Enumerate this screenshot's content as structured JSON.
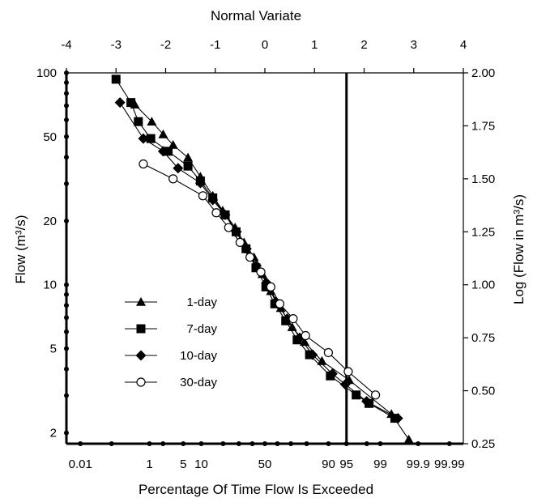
{
  "chart_data": {
    "type": "line",
    "title": "",
    "top_axis": {
      "label": "Normal Variate",
      "ticks": [
        -4,
        -3,
        -2,
        -1,
        0,
        1,
        2,
        3,
        4
      ],
      "tick_labels": [
        "-4",
        "-3",
        "-2",
        "-1",
        "0",
        "1",
        "2",
        "3",
        "4"
      ],
      "range": [
        -4,
        4
      ]
    },
    "bottom_axis": {
      "label": "Percentage Of Time Flow Is Exceeded",
      "scale": "normal-probability",
      "tick_labels": [
        {
          "label": "0.01",
          "z": -3.719
        },
        {
          "label": "1",
          "z": -2.326
        },
        {
          "label": "5",
          "z": -1.645
        },
        {
          "label": "10",
          "z": -1.282
        },
        {
          "label": "50",
          "z": 0
        },
        {
          "label": "90",
          "z": 1.282
        },
        {
          "label": "95",
          "z": 1.645
        },
        {
          "label": "99",
          "z": 2.326
        },
        {
          "label": "99.9",
          "z": 3.09
        },
        {
          "label": "99.99",
          "z": 3.719
        }
      ],
      "dot_ticks_z": [
        -3.719,
        -3.09,
        -2.326,
        -2.054,
        -1.645,
        -1.282,
        -0.842,
        -0.524,
        -0.253,
        0,
        0.253,
        0.524,
        0.842,
        1.282,
        1.645,
        2.054,
        2.326,
        3.09,
        3.719
      ]
    },
    "left_axis": {
      "label": "Flow (m³/s)",
      "scale": "log",
      "range": [
        1.778,
        100
      ],
      "tick_labels": [
        {
          "label": "2",
          "value": 2
        },
        {
          "label": "5",
          "value": 5
        },
        {
          "label": "10",
          "value": 10
        },
        {
          "label": "20",
          "value": 20
        },
        {
          "label": "50",
          "value": 50
        },
        {
          "label": "100",
          "value": 100
        }
      ],
      "dot_ticks": [
        2,
        3,
        4,
        5,
        6,
        7,
        8,
        9,
        10,
        20,
        30,
        40,
        50,
        60,
        70,
        80,
        90,
        100
      ]
    },
    "right_axis": {
      "label": "Log (Flow in m³/s)",
      "range": [
        0.25,
        2.0
      ],
      "ticks": [
        0.25,
        0.5,
        0.75,
        1.0,
        1.25,
        1.5,
        1.75,
        2.0
      ],
      "tick_labels": [
        "0.25",
        "0.50",
        "0.75",
        "1.00",
        "1.25",
        "1.50",
        "1.75",
        "2.00"
      ]
    },
    "vertical_reference_line_z": 1.645,
    "legend_position": "center-left",
    "series": [
      {
        "name": "1-day",
        "marker": "triangle",
        "x": [
          -2.62,
          -2.28,
          -2.05,
          -1.85,
          -1.55,
          -1.3,
          -1.05,
          -0.85,
          -0.6,
          -0.42,
          -0.22,
          -0.05,
          0.12,
          0.32,
          0.55,
          0.8,
          1.15,
          1.7,
          2.55,
          2.9
        ],
        "y": [
          1.85,
          1.77,
          1.71,
          1.66,
          1.6,
          1.51,
          1.42,
          1.35,
          1.27,
          1.2,
          1.13,
          1.05,
          0.97,
          0.89,
          0.8,
          0.73,
          0.64,
          0.55,
          0.39,
          0.27
        ]
      },
      {
        "name": "7-day",
        "marker": "square",
        "x": [
          -3.0,
          -2.7,
          -2.55,
          -2.3,
          -1.95,
          -1.55,
          -1.3,
          -1.05,
          -0.8,
          -0.58,
          -0.38,
          -0.18,
          0.02,
          0.2,
          0.42,
          0.65,
          0.9,
          1.32,
          1.84,
          2.1,
          2.62
        ],
        "y": [
          1.97,
          1.86,
          1.77,
          1.69,
          1.63,
          1.56,
          1.49,
          1.41,
          1.33,
          1.25,
          1.17,
          1.08,
          0.99,
          0.91,
          0.83,
          0.74,
          0.67,
          0.57,
          0.48,
          0.44,
          0.37
        ]
      },
      {
        "name": "10-day",
        "marker": "diamond",
        "x": [
          -2.92,
          -2.45,
          -2.05,
          -1.75,
          -1.3,
          -1.05,
          -0.8,
          -0.57,
          -0.37,
          -0.17,
          0.03,
          0.22,
          0.45,
          0.7,
          0.96,
          1.36,
          1.62,
          2.05,
          2.68
        ],
        "y": [
          1.86,
          1.69,
          1.63,
          1.55,
          1.48,
          1.4,
          1.33,
          1.25,
          1.17,
          1.09,
          1.01,
          0.92,
          0.84,
          0.75,
          0.67,
          0.58,
          0.53,
          0.45,
          0.37
        ]
      },
      {
        "name": "30-day",
        "marker": "circle",
        "x": [
          -2.45,
          -1.85,
          -1.25,
          -0.98,
          -0.73,
          -0.5,
          -0.3,
          -0.08,
          0.12,
          0.3,
          0.57,
          0.82,
          1.28,
          1.68,
          2.23
        ],
        "y": [
          1.57,
          1.5,
          1.42,
          1.34,
          1.27,
          1.2,
          1.13,
          1.06,
          0.99,
          0.91,
          0.84,
          0.76,
          0.68,
          0.59,
          0.48
        ]
      }
    ]
  }
}
